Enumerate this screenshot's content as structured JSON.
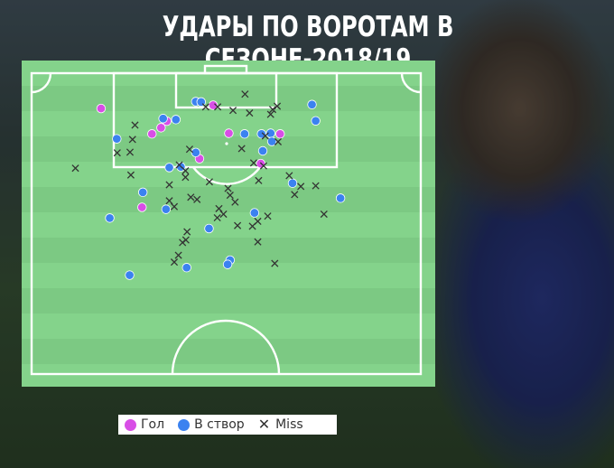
{
  "title": "УДАРЫ ПО ВОРОТАМ В СЕЗОНЕ-2018/19",
  "colors": {
    "pitch": "#84d38b",
    "stripe": "#7cc983",
    "lines": "#ffffff",
    "goal": "#d84ee6",
    "on_target": "#3b82f0",
    "miss": "#333333"
  },
  "legend": {
    "goal": "Гол",
    "on_target": "В створ",
    "miss": "Miss"
  },
  "chart_data": {
    "type": "scatter",
    "x_range": [
      0,
      100
    ],
    "y_range": [
      0,
      100
    ],
    "series": [
      {
        "name": "Гол",
        "marker": "dot",
        "points": [
          [
            19.2,
            14.7
          ],
          [
            46.3,
            13.7
          ],
          [
            31.5,
            22.5
          ],
          [
            33.7,
            20.6
          ],
          [
            35.1,
            18.6
          ],
          [
            50.1,
            22.3
          ],
          [
            62.5,
            22.5
          ],
          [
            57.8,
            31.6
          ],
          [
            43.0,
            30.1
          ],
          [
            29.1,
            45.0
          ]
        ]
      },
      {
        "name": "В створ",
        "marker": "dot",
        "points": [
          [
            42.1,
            12.6
          ],
          [
            43.4,
            12.7
          ],
          [
            70.2,
            13.5
          ],
          [
            71.1,
            18.5
          ],
          [
            37.3,
            18.1
          ],
          [
            34.2,
            17.8
          ],
          [
            23.0,
            24.0
          ],
          [
            53.9,
            22.5
          ],
          [
            58.0,
            22.5
          ],
          [
            60.2,
            22.3
          ],
          [
            60.5,
            24.8
          ],
          [
            58.3,
            27.7
          ],
          [
            42.1,
            28.2
          ],
          [
            35.7,
            32.8
          ],
          [
            38.5,
            32.6
          ],
          [
            29.3,
            40.4
          ],
          [
            21.3,
            48.3
          ],
          [
            34.9,
            45.6
          ],
          [
            56.3,
            46.7
          ],
          [
            45.3,
            51.5
          ],
          [
            65.5,
            37.6
          ],
          [
            77.1,
            42.2
          ],
          [
            50.4,
            61.2
          ],
          [
            49.8,
            62.5
          ],
          [
            39.9,
            63.5
          ],
          [
            26.1,
            65.8
          ]
        ]
      },
      {
        "name": "Miss",
        "marker": "x",
        "points": [
          [
            54.0,
            10.3
          ],
          [
            44.5,
            14.2
          ],
          [
            47.4,
            14.2
          ],
          [
            51.1,
            15.3
          ],
          [
            60.7,
            15.0
          ],
          [
            61.8,
            14.0
          ],
          [
            55.1,
            16.1
          ],
          [
            60.2,
            16.5
          ],
          [
            27.4,
            19.8
          ],
          [
            26.8,
            24.2
          ],
          [
            58.9,
            23.1
          ],
          [
            62.0,
            24.9
          ],
          [
            26.2,
            28.1
          ],
          [
            23.1,
            28.3
          ],
          [
            40.6,
            27.2
          ],
          [
            38.1,
            32.0
          ],
          [
            39.6,
            33.8
          ],
          [
            53.2,
            27.0
          ],
          [
            56.1,
            31.4
          ],
          [
            58.5,
            32.3
          ],
          [
            13.0,
            33.0
          ],
          [
            26.4,
            35.1
          ],
          [
            39.6,
            35.8
          ],
          [
            57.3,
            36.8
          ],
          [
            64.7,
            35.3
          ],
          [
            45.4,
            37.2
          ],
          [
            49.9,
            39.2
          ],
          [
            67.5,
            38.6
          ],
          [
            71.1,
            38.4
          ],
          [
            35.7,
            38.1
          ],
          [
            50.4,
            41.3
          ],
          [
            40.9,
            41.9
          ],
          [
            42.4,
            42.6
          ],
          [
            35.7,
            43.0
          ],
          [
            51.6,
            43.4
          ],
          [
            36.9,
            44.8
          ],
          [
            47.7,
            45.4
          ],
          [
            66.0,
            41.1
          ],
          [
            48.8,
            47.1
          ],
          [
            47.3,
            48.2
          ],
          [
            57.1,
            49.3
          ],
          [
            59.5,
            47.7
          ],
          [
            73.1,
            47.1
          ],
          [
            55.8,
            50.8
          ],
          [
            52.2,
            50.6
          ],
          [
            40.0,
            52.5
          ],
          [
            39.7,
            55.0
          ],
          [
            38.9,
            55.8
          ],
          [
            57.1,
            55.6
          ],
          [
            36.9,
            61.8
          ],
          [
            61.2,
            62.2
          ],
          [
            37.9,
            59.7
          ]
        ]
      }
    ]
  }
}
